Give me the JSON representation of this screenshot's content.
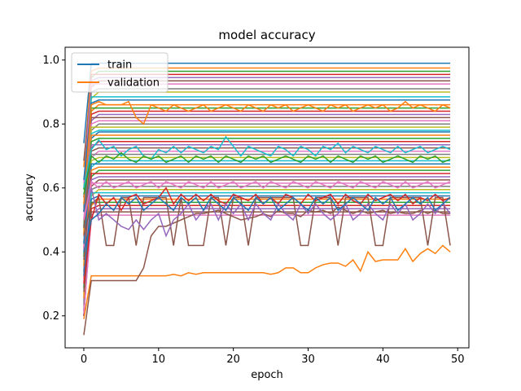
{
  "chart_data": {
    "type": "line",
    "title": "model accuracy",
    "xlabel": "epoch",
    "ylabel": "accuracy",
    "xlim": [
      -2.5,
      51.5
    ],
    "ylim": [
      0.1,
      1.04
    ],
    "xticks": [
      0,
      10,
      20,
      30,
      40,
      50
    ],
    "xtick_labels": [
      "0",
      "10",
      "20",
      "30",
      "40",
      "50"
    ],
    "yticks": [
      0.2,
      0.4,
      0.6,
      0.8,
      1.0
    ],
    "ytick_labels": [
      "0.2",
      "0.4",
      "0.6",
      "0.8",
      "1.0"
    ],
    "grid": false,
    "legend": {
      "placement": "upper-left",
      "entries": [
        {
          "label": "train",
          "color": "#1f77b4"
        },
        {
          "label": "validation",
          "color": "#ff7f0e"
        }
      ]
    },
    "flat_levels": [
      0.99,
      0.975,
      0.965,
      0.955,
      0.945,
      0.935,
      0.925,
      0.91,
      0.9,
      0.885,
      0.875,
      0.86,
      0.85,
      0.84,
      0.83,
      0.82,
      0.81,
      0.8,
      0.79,
      0.78,
      0.775,
      0.765,
      0.755,
      0.745,
      0.735,
      0.725,
      0.715,
      0.705,
      0.695,
      0.685,
      0.675,
      0.665,
      0.655,
      0.645,
      0.635,
      0.625,
      0.615,
      0.605,
      0.595,
      0.585,
      0.575,
      0.565,
      0.555,
      0.545,
      0.535,
      0.525,
      0.515
    ],
    "series": [
      {
        "name": "validation",
        "color": "#ff7f0e",
        "x": [
          0,
          1,
          2,
          3,
          4,
          5,
          6,
          7,
          8,
          9,
          10,
          11,
          12,
          13,
          14,
          15,
          16,
          17,
          18,
          19,
          20,
          21,
          22,
          23,
          24,
          25,
          26,
          27,
          28,
          29,
          30,
          31,
          32,
          33,
          34,
          35,
          36,
          37,
          38,
          39,
          40,
          41,
          42,
          43,
          44,
          45,
          46,
          47,
          48,
          49
        ],
        "y": [
          0.19,
          0.325,
          0.325,
          0.325,
          0.325,
          0.325,
          0.325,
          0.325,
          0.325,
          0.325,
          0.325,
          0.325,
          0.33,
          0.325,
          0.335,
          0.33,
          0.335,
          0.335,
          0.335,
          0.335,
          0.335,
          0.335,
          0.335,
          0.335,
          0.335,
          0.33,
          0.335,
          0.35,
          0.35,
          0.335,
          0.335,
          0.35,
          0.36,
          0.365,
          0.365,
          0.355,
          0.375,
          0.34,
          0.4,
          0.37,
          0.375,
          0.375,
          0.375,
          0.41,
          0.37,
          0.395,
          0.41,
          0.395,
          0.42,
          0.4
        ]
      },
      {
        "name": "",
        "color": "#8c564b",
        "x": [
          0,
          1,
          2,
          3,
          4,
          5,
          6,
          7,
          8,
          9,
          10,
          11,
          12,
          13,
          14,
          15,
          16,
          17,
          18,
          19,
          20,
          21,
          22,
          23,
          24,
          25,
          26,
          27,
          28,
          29,
          30,
          31,
          32,
          33,
          34,
          35,
          36,
          37,
          38,
          39,
          40,
          41,
          42,
          43,
          44,
          45,
          46,
          47,
          48,
          49
        ],
        "y": [
          0.14,
          0.31,
          0.31,
          0.31,
          0.31,
          0.31,
          0.31,
          0.31,
          0.35,
          0.45,
          0.48,
          0.48,
          0.49,
          0.5,
          0.51,
          0.52,
          0.52,
          0.525,
          0.53,
          0.52,
          0.51,
          0.5,
          0.505,
          0.51,
          0.52,
          0.51,
          0.53,
          0.52,
          0.52,
          0.51,
          0.53,
          0.525,
          0.53,
          0.52,
          0.54,
          0.53,
          0.52,
          0.53,
          0.52,
          0.525,
          0.53,
          0.52,
          0.525,
          0.52,
          0.52,
          0.53,
          0.52,
          0.53,
          0.52,
          0.52
        ]
      },
      {
        "name": "",
        "color": "#8c564b",
        "x": [
          0,
          1,
          2,
          3,
          4,
          5,
          6,
          7,
          8,
          9,
          10,
          11,
          12,
          13,
          14,
          15,
          16,
          17,
          18,
          19,
          20,
          21,
          22,
          23,
          24,
          25,
          26,
          27,
          28,
          29,
          30,
          31,
          32,
          33,
          34,
          35,
          36,
          37,
          38,
          39,
          40,
          41,
          42,
          43,
          44,
          45,
          46,
          47,
          48,
          49
        ],
        "y": [
          0.45,
          0.55,
          0.57,
          0.42,
          0.42,
          0.57,
          0.57,
          0.42,
          0.57,
          0.57,
          0.57,
          0.57,
          0.42,
          0.57,
          0.42,
          0.42,
          0.42,
          0.57,
          0.57,
          0.42,
          0.57,
          0.57,
          0.42,
          0.57,
          0.57,
          0.57,
          0.57,
          0.57,
          0.57,
          0.42,
          0.42,
          0.57,
          0.57,
          0.57,
          0.42,
          0.57,
          0.57,
          0.57,
          0.57,
          0.42,
          0.42,
          0.57,
          0.57,
          0.57,
          0.57,
          0.57,
          0.42,
          0.57,
          0.57,
          0.42
        ]
      },
      {
        "name": "",
        "color": "#d62728",
        "x": [
          0,
          1,
          2,
          3,
          4,
          5,
          6,
          7,
          8,
          9,
          10,
          11,
          12,
          13,
          14,
          15,
          16,
          17,
          18,
          19,
          20,
          21,
          22,
          23,
          24,
          25,
          26,
          27,
          28,
          29,
          30,
          31,
          32,
          33,
          34,
          35,
          36,
          37,
          38,
          39,
          40,
          41,
          42,
          43,
          44,
          45,
          46,
          47,
          48,
          49
        ],
        "y": [
          0.3,
          0.5,
          0.58,
          0.55,
          0.57,
          0.53,
          0.57,
          0.58,
          0.55,
          0.56,
          0.57,
          0.6,
          0.55,
          0.58,
          0.56,
          0.58,
          0.56,
          0.58,
          0.56,
          0.55,
          0.58,
          0.57,
          0.56,
          0.58,
          0.55,
          0.57,
          0.55,
          0.58,
          0.57,
          0.55,
          0.58,
          0.56,
          0.57,
          0.58,
          0.55,
          0.58,
          0.56,
          0.55,
          0.58,
          0.56,
          0.57,
          0.58,
          0.56,
          0.58,
          0.55,
          0.57,
          0.56,
          0.58,
          0.56,
          0.57
        ]
      },
      {
        "name": "",
        "color": "#9467bd",
        "x": [
          0,
          1,
          2,
          3,
          4,
          5,
          6,
          7,
          8,
          9,
          10,
          11,
          12,
          13,
          14,
          15,
          16,
          17,
          18,
          19,
          20,
          21,
          22,
          23,
          24,
          25,
          26,
          27,
          28,
          29,
          30,
          31,
          32,
          33,
          34,
          35,
          36,
          37,
          38,
          39,
          40,
          41,
          42,
          43,
          44,
          45,
          46,
          47,
          48,
          49
        ],
        "y": [
          0.5,
          0.6,
          0.5,
          0.52,
          0.5,
          0.48,
          0.47,
          0.5,
          0.47,
          0.5,
          0.52,
          0.45,
          0.5,
          0.52,
          0.55,
          0.5,
          0.53,
          0.55,
          0.5,
          0.55,
          0.52,
          0.55,
          0.5,
          0.55,
          0.52,
          0.5,
          0.55,
          0.52,
          0.5,
          0.55,
          0.52,
          0.55,
          0.52,
          0.5,
          0.52,
          0.55,
          0.5,
          0.52,
          0.55,
          0.52,
          0.5,
          0.55,
          0.52,
          0.55,
          0.5,
          0.52,
          0.55,
          0.52,
          0.55,
          0.52
        ]
      },
      {
        "name": "",
        "color": "#ff7f0e",
        "x": [
          0,
          1,
          2,
          3,
          4,
          5,
          6,
          7,
          8,
          9,
          10,
          11,
          12,
          13,
          14,
          15,
          16,
          17,
          18,
          19,
          20,
          21,
          22,
          23,
          24,
          25,
          26,
          27,
          28,
          29,
          30,
          31,
          32,
          33,
          34,
          35,
          36,
          37,
          38,
          39,
          40,
          41,
          42,
          43,
          44,
          45,
          46,
          47,
          48,
          49
        ],
        "y": [
          0.55,
          0.86,
          0.87,
          0.86,
          0.86,
          0.86,
          0.87,
          0.82,
          0.8,
          0.86,
          0.85,
          0.84,
          0.86,
          0.85,
          0.84,
          0.85,
          0.86,
          0.84,
          0.85,
          0.86,
          0.85,
          0.84,
          0.86,
          0.85,
          0.84,
          0.86,
          0.85,
          0.86,
          0.84,
          0.85,
          0.86,
          0.85,
          0.84,
          0.86,
          0.85,
          0.86,
          0.84,
          0.85,
          0.86,
          0.85,
          0.86,
          0.84,
          0.85,
          0.87,
          0.85,
          0.86,
          0.85,
          0.84,
          0.86,
          0.85
        ]
      },
      {
        "name": "",
        "color": "#17becf",
        "x": [
          0,
          1,
          2,
          3,
          4,
          5,
          6,
          7,
          8,
          9,
          10,
          11,
          12,
          13,
          14,
          15,
          16,
          17,
          18,
          19,
          20,
          21,
          22,
          23,
          24,
          25,
          26,
          27,
          28,
          29,
          30,
          31,
          32,
          33,
          34,
          35,
          36,
          37,
          38,
          39,
          40,
          41,
          42,
          43,
          44,
          45,
          46,
          47,
          48,
          49
        ],
        "y": [
          0.6,
          0.72,
          0.75,
          0.72,
          0.73,
          0.7,
          0.72,
          0.73,
          0.7,
          0.69,
          0.72,
          0.71,
          0.73,
          0.71,
          0.73,
          0.72,
          0.71,
          0.73,
          0.72,
          0.76,
          0.73,
          0.7,
          0.73,
          0.72,
          0.71,
          0.7,
          0.73,
          0.72,
          0.7,
          0.73,
          0.72,
          0.7,
          0.73,
          0.72,
          0.74,
          0.71,
          0.73,
          0.72,
          0.71,
          0.73,
          0.72,
          0.71,
          0.73,
          0.71,
          0.72,
          0.73,
          0.71,
          0.72,
          0.73,
          0.72
        ]
      },
      {
        "name": "",
        "color": "#2ca02c",
        "x": [
          0,
          1,
          2,
          3,
          4,
          5,
          6,
          7,
          8,
          9,
          10,
          11,
          12,
          13,
          14,
          15,
          16,
          17,
          18,
          19,
          20,
          21,
          22,
          23,
          24,
          25,
          26,
          27,
          28,
          29,
          30,
          31,
          32,
          33,
          34,
          35,
          36,
          37,
          38,
          39,
          40,
          41,
          42,
          43,
          44,
          45,
          46,
          47,
          48,
          49
        ],
        "y": [
          0.58,
          0.7,
          0.68,
          0.7,
          0.69,
          0.71,
          0.69,
          0.68,
          0.7,
          0.69,
          0.7,
          0.68,
          0.69,
          0.7,
          0.68,
          0.7,
          0.69,
          0.7,
          0.68,
          0.7,
          0.69,
          0.68,
          0.7,
          0.69,
          0.7,
          0.68,
          0.69,
          0.7,
          0.69,
          0.68,
          0.7,
          0.69,
          0.7,
          0.68,
          0.7,
          0.69,
          0.68,
          0.7,
          0.69,
          0.7,
          0.68,
          0.69,
          0.7,
          0.69,
          0.68,
          0.7,
          0.69,
          0.7,
          0.68,
          0.69
        ]
      },
      {
        "name": "",
        "color": "#e377c2",
        "x": [
          0,
          1,
          2,
          3,
          4,
          5,
          6,
          7,
          8,
          9,
          10,
          11,
          12,
          13,
          14,
          15,
          16,
          17,
          18,
          19,
          20,
          21,
          22,
          23,
          24,
          25,
          26,
          27,
          28,
          29,
          30,
          31,
          32,
          33,
          34,
          35,
          36,
          37,
          38,
          39,
          40,
          41,
          42,
          43,
          44,
          45,
          46,
          47,
          48,
          49
        ],
        "y": [
          0.5,
          0.62,
          0.6,
          0.62,
          0.6,
          0.61,
          0.62,
          0.6,
          0.61,
          0.62,
          0.6,
          0.62,
          0.61,
          0.6,
          0.62,
          0.61,
          0.6,
          0.62,
          0.6,
          0.61,
          0.62,
          0.6,
          0.61,
          0.62,
          0.6,
          0.62,
          0.61,
          0.6,
          0.62,
          0.61,
          0.6,
          0.62,
          0.61,
          0.6,
          0.62,
          0.61,
          0.6,
          0.62,
          0.61,
          0.6,
          0.62,
          0.61,
          0.6,
          0.62,
          0.6,
          0.61,
          0.62,
          0.6,
          0.61,
          0.62
        ]
      },
      {
        "name": "",
        "color": "#1f77b4",
        "x": [
          0,
          1,
          2,
          3,
          4,
          5,
          6,
          7,
          8,
          9,
          10,
          11,
          12,
          13,
          14,
          15,
          16,
          17,
          18,
          19,
          20,
          21,
          22,
          23,
          24,
          25,
          26,
          27,
          28,
          29,
          30,
          31,
          32,
          33,
          34,
          35,
          36,
          37,
          38,
          39,
          40,
          41,
          42,
          43,
          44,
          45,
          46,
          47,
          48,
          49
        ],
        "y": [
          0.4,
          0.5,
          0.52,
          0.55,
          0.53,
          0.57,
          0.55,
          0.57,
          0.53,
          0.55,
          0.57,
          0.55,
          0.53,
          0.57,
          0.55,
          0.57,
          0.53,
          0.57,
          0.55,
          0.53,
          0.57,
          0.55,
          0.53,
          0.57,
          0.55,
          0.57,
          0.53,
          0.55,
          0.57,
          0.55,
          0.53,
          0.57,
          0.55,
          0.57,
          0.53,
          0.55,
          0.57,
          0.55,
          0.53,
          0.57,
          0.55,
          0.57,
          0.53,
          0.55,
          0.57,
          0.55,
          0.57,
          0.53,
          0.55,
          0.57
        ]
      }
    ]
  }
}
